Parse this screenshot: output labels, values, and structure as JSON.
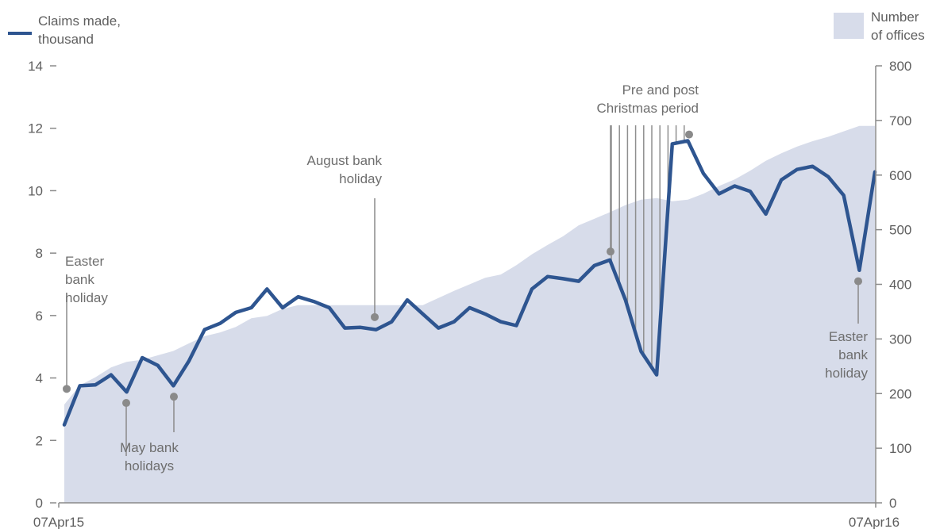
{
  "colors": {
    "claims_line": "#2e5590",
    "offices_area": "#d7dcea",
    "axis": "#8a8a8a",
    "annotation": "#8a8a8a",
    "text": "#5f5f5f"
  },
  "legend": {
    "left": {
      "line1": "Claims made,",
      "line2": "thousand"
    },
    "right": {
      "line1": "Number",
      "line2": "of offices"
    }
  },
  "chart_data": {
    "type": "line",
    "x_start_label": "07Apr15",
    "x_end_label": "07Apr16",
    "x_points": 53,
    "y_left": {
      "ylim": [
        0,
        14
      ],
      "ticks": [
        "0",
        "2",
        "4",
        "6",
        "8",
        "10",
        "12",
        "14"
      ]
    },
    "y_right": {
      "ylim": [
        0,
        800
      ],
      "ticks": [
        "0",
        "100",
        "200",
        "300",
        "400",
        "500",
        "600",
        "700",
        "800"
      ]
    },
    "series": [
      {
        "name": "Claims made, thousand",
        "axis": "left",
        "style": "line",
        "values": [
          2.5,
          3.75,
          3.78,
          4.1,
          3.55,
          4.65,
          4.4,
          3.75,
          4.55,
          5.55,
          5.75,
          6.1,
          6.25,
          6.85,
          6.25,
          6.6,
          6.45,
          6.25,
          5.6,
          5.62,
          5.55,
          5.8,
          6.5,
          6.05,
          5.6,
          5.8,
          6.25,
          6.05,
          5.8,
          5.68,
          6.85,
          7.25,
          7.18,
          7.1,
          7.6,
          7.78,
          6.5,
          4.85,
          4.1,
          11.5,
          11.6,
          10.55,
          9.9,
          10.15,
          9.98,
          9.25,
          10.35,
          10.68,
          10.78,
          10.45,
          9.85,
          7.45,
          10.6
        ]
      },
      {
        "name": "Number of offices",
        "axis": "right",
        "style": "area",
        "values": [
          180,
          215,
          230,
          248,
          258,
          262,
          270,
          278,
          292,
          305,
          312,
          322,
          338,
          342,
          355,
          362,
          362,
          362,
          362,
          362,
          362,
          362,
          362,
          362,
          375,
          388,
          400,
          412,
          418,
          435,
          455,
          472,
          488,
          508,
          520,
          532,
          545,
          555,
          558,
          552,
          555,
          566,
          580,
          592,
          608,
          626,
          640,
          652,
          662,
          670,
          680,
          690,
          690
        ]
      }
    ],
    "annotations": [
      {
        "lines": [
          "Easter",
          "bank",
          "holiday"
        ],
        "index": 0,
        "value": 3.65
      },
      {
        "lines": [
          "May bank",
          "holidays"
        ],
        "index": 4,
        "value": 3.2
      },
      {
        "lines": [],
        "index": 7,
        "value": 3.4
      },
      {
        "lines": [
          "August bank",
          "holiday"
        ],
        "index": 20,
        "value": 5.95
      },
      {
        "lines": [
          "Pre and post",
          "Christmas period"
        ],
        "index": 35,
        "value": 8.05
      },
      {
        "lines": [],
        "index": 40,
        "value": 11.8
      },
      {
        "lines": [
          "Easter",
          "bank",
          "holiday"
        ],
        "index": 51,
        "value": 7.1
      }
    ]
  }
}
